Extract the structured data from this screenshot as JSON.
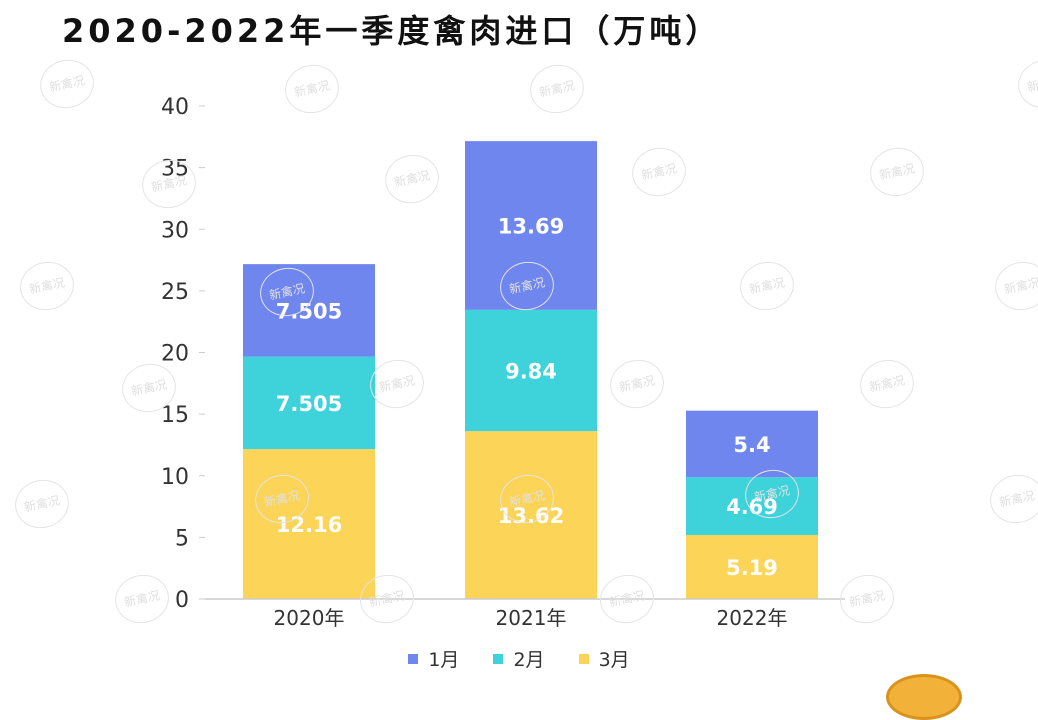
{
  "title": "2020-2022年一季度禽肉进口（万吨）",
  "watermark": "新禽况",
  "colors": {
    "m1": "#6f86ee",
    "m2": "#3ed2db",
    "m3": "#fcd457",
    "axis": "#cccccc",
    "tick": "#333333"
  },
  "chart_data": {
    "type": "bar",
    "stacked": true,
    "title": "2020-2022年一季度禽肉进口（万吨）",
    "categories": [
      "2020年",
      "2021年",
      "2022年"
    ],
    "series": [
      {
        "name": "3月",
        "values": [
          12.16,
          13.62,
          5.19
        ],
        "labels": [
          "12.16",
          "13.62",
          "5.19"
        ]
      },
      {
        "name": "2月",
        "values": [
          7.505,
          9.84,
          4.69
        ],
        "labels": [
          "7.505",
          "9.84",
          "4.69"
        ]
      },
      {
        "name": "1月",
        "values": [
          7.505,
          13.69,
          5.4
        ],
        "labels": [
          "7.505",
          "13.69",
          "5.4"
        ]
      }
    ],
    "yticks": [
      "0",
      "5",
      "10",
      "15",
      "20",
      "25",
      "30",
      "35",
      "40"
    ],
    "ylim": [
      0,
      40
    ],
    "legend": [
      "1月",
      "2月",
      "3月"
    ],
    "legend_position": "bottom",
    "grid": false
  }
}
